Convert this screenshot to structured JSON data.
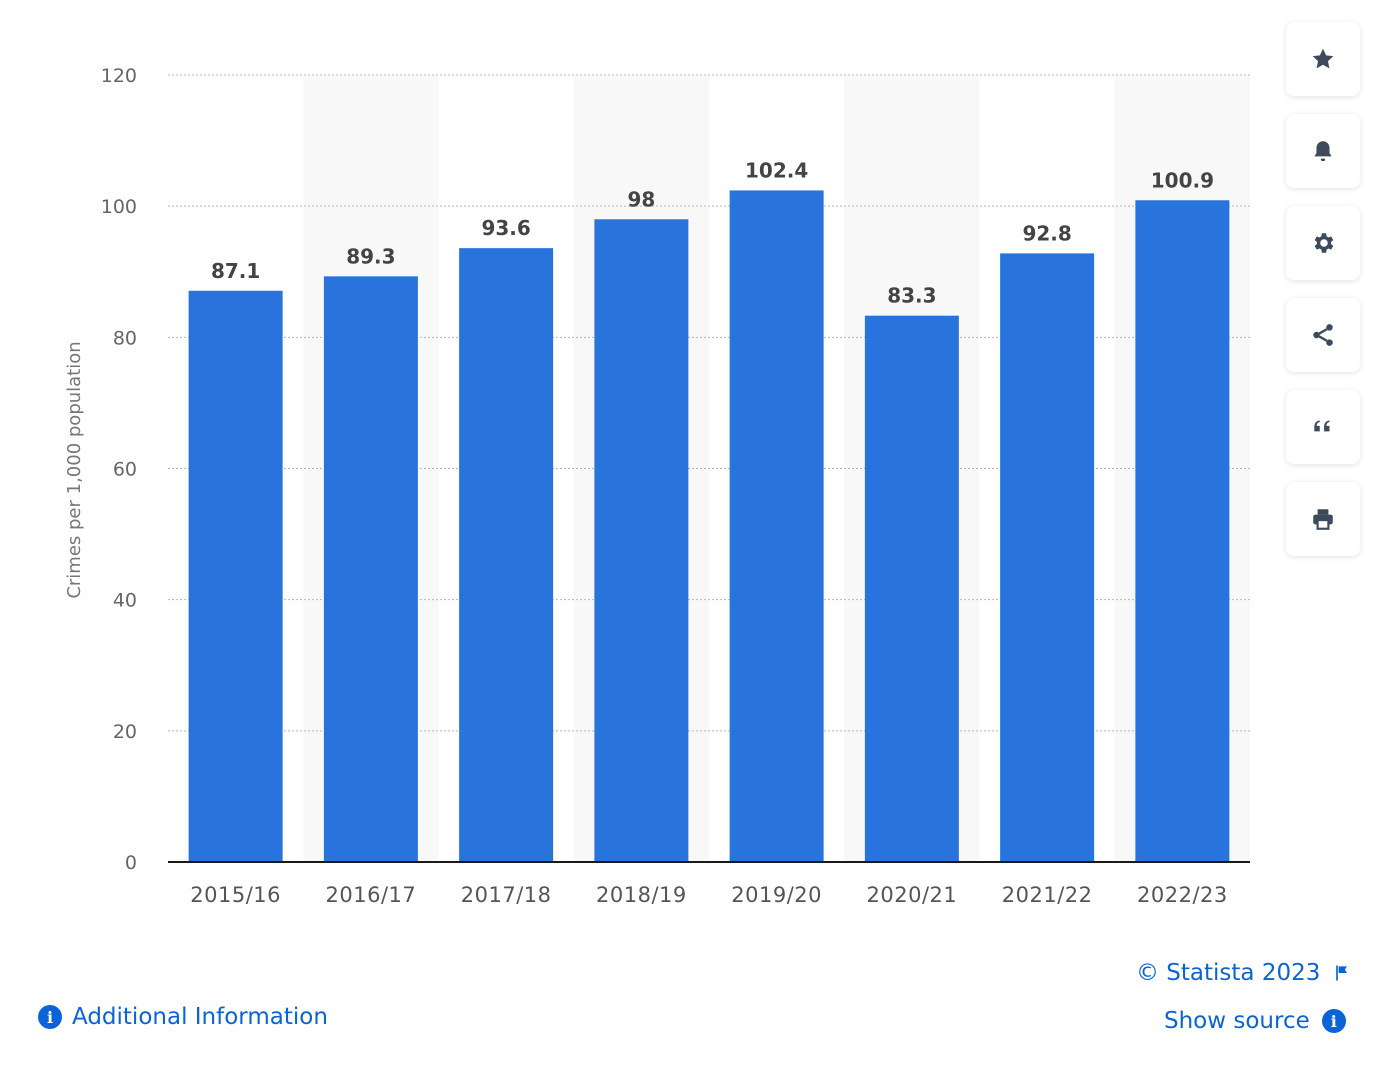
{
  "chart_data": {
    "type": "bar",
    "categories": [
      "2015/16",
      "2016/17",
      "2017/18",
      "2018/19",
      "2019/20",
      "2020/21",
      "2021/22",
      "2022/23"
    ],
    "values": [
      87.1,
      89.3,
      93.6,
      98,
      102.4,
      83.3,
      92.8,
      100.9
    ],
    "value_labels": [
      "87.1",
      "89.3",
      "93.6",
      "98",
      "102.4",
      "83.3",
      "92.8",
      "100.9"
    ],
    "ylabel": "Crimes per 1,000 population",
    "ylim": [
      0,
      120
    ],
    "yticks": [
      "0",
      "20",
      "40",
      "60",
      "80",
      "100",
      "120"
    ],
    "grid": true,
    "bar_color": "#2874dc"
  },
  "toolbar": {
    "icons": [
      "star-icon",
      "bell-icon",
      "gear-icon",
      "share-icon",
      "quote-icon",
      "print-icon"
    ]
  },
  "footer": {
    "copyright": "© Statista 2023",
    "show_source": "Show source",
    "additional_info": "Additional Information"
  },
  "colors": {
    "accent": "#0a64d8",
    "bar": "#2874dc",
    "icon": "#3d4a5c"
  }
}
